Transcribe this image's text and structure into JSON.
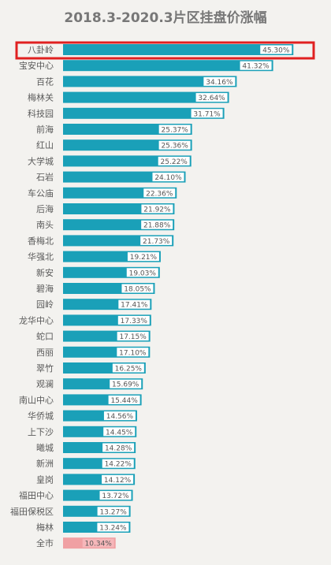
{
  "chart_data": {
    "type": "bar",
    "orientation": "horizontal",
    "title": "2018.3-2020.3片区挂盘价涨幅",
    "categories": [
      "八卦岭",
      "宝安中心",
      "百花",
      "梅林关",
      "科技园",
      "前海",
      "红山",
      "大学城",
      "石岩",
      "车公庙",
      "后海",
      "南头",
      "香梅北",
      "华强北",
      "新安",
      "碧海",
      "园岭",
      "龙华中心",
      "蛇口",
      "西丽",
      "翠竹",
      "观澜",
      "南山中心",
      "华侨城",
      "上下沙",
      "曦城",
      "新洲",
      "皇岗",
      "福田中心",
      "福田保税区",
      "梅林",
      "全市"
    ],
    "values": [
      45.3,
      41.32,
      34.16,
      32.64,
      31.71,
      25.37,
      25.36,
      25.22,
      24.1,
      22.36,
      21.92,
      21.88,
      21.73,
      19.21,
      19.03,
      18.05,
      17.41,
      17.33,
      17.15,
      17.1,
      16.25,
      15.69,
      15.44,
      14.56,
      14.45,
      14.28,
      14.22,
      14.12,
      13.72,
      13.27,
      13.24,
      10.34
    ],
    "value_labels": [
      "45.30%",
      "41.32%",
      "34.16%",
      "32.64%",
      "31.71%",
      "25.37%",
      "25.36%",
      "25.22%",
      "24.10%",
      "22.36%",
      "21.92%",
      "21.88%",
      "21.73%",
      "19.21%",
      "19.03%",
      "18.05%",
      "17.41%",
      "17.33%",
      "17.15%",
      "17.10%",
      "16.25%",
      "15.69%",
      "15.44%",
      "14.56%",
      "14.45%",
      "14.28%",
      "14.22%",
      "14.12%",
      "13.72%",
      "13.27%",
      "13.24%",
      "10.34%"
    ],
    "unit": "%",
    "xlim": [
      0,
      46.5
    ],
    "grid": false,
    "highlighted_category": "八卦岭",
    "highlight_box_color": "#e02020",
    "colors": {
      "bar": "#1aa0b8",
      "overall_bar": "#f0a0a3",
      "label_bg": "#ffffff",
      "overall_label_bg": "#f6b7ba",
      "overall_label_text": "#ffffff"
    }
  }
}
